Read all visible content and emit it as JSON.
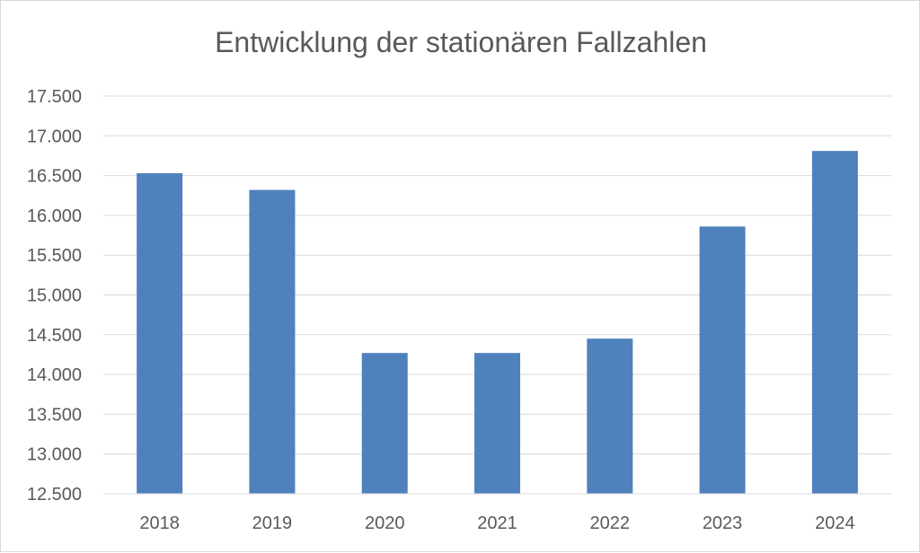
{
  "chart_data": {
    "type": "bar",
    "title": "Entwicklung der stationären Fallzahlen",
    "xlabel": "",
    "ylabel": "",
    "categories": [
      "2018",
      "2019",
      "2020",
      "2021",
      "2022",
      "2023",
      "2024"
    ],
    "values": [
      16530,
      16320,
      14270,
      14270,
      14450,
      15860,
      16810
    ],
    "ylim": [
      12500,
      17500
    ],
    "ytick_values": [
      12500,
      13000,
      13500,
      14000,
      14500,
      15000,
      15500,
      16000,
      16500,
      17000,
      17500
    ],
    "ytick_labels": [
      "12.500",
      "13.000",
      "13.500",
      "14.000",
      "14.500",
      "15.000",
      "15.500",
      "16.000",
      "16.500",
      "17.000",
      "17.500"
    ],
    "grid": true,
    "legend": "none",
    "colors": {
      "bar": "#4f81bd",
      "grid": "#d9d9d9",
      "text": "#595959"
    }
  }
}
